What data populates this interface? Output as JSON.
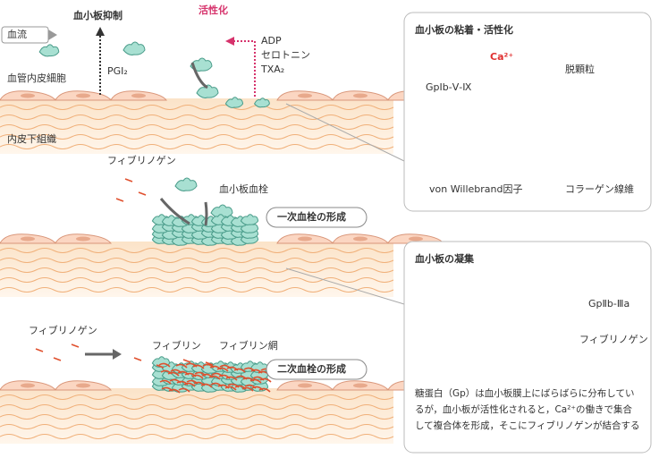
{
  "flow": {
    "label": "血流"
  },
  "top": {
    "inhibition": "血小板抑制",
    "pgi2": "PGI₂",
    "activation": "活性化",
    "mediators": [
      "ADP",
      "セロトニン",
      "TXA₂"
    ],
    "endothelium": "血管内皮細胞",
    "subendothelium": "内皮下組織"
  },
  "middle": {
    "fibrinogen": "フィブリノゲン",
    "thrombus": "血小板血栓",
    "stage": "一次血栓の形成"
  },
  "bottom": {
    "fibrinogen": "フィブリノゲン",
    "fibrin": "フィブリン",
    "fibrin_net": "フィブリン網",
    "stage": "二次血栓の形成"
  },
  "panel1": {
    "title": "血小板の粘着・活性化",
    "ca": "Ca²⁺",
    "degranulation": "脱顆粒",
    "receptor": "GpⅠb-Ⅴ-Ⅸ",
    "vwf": "von Willebrand因子",
    "collagen": "コラーゲン線維"
  },
  "panel2": {
    "title": "血小板の凝集",
    "receptor": "GpⅡb-Ⅲa",
    "fibrinogen": "フィブリノゲン",
    "text": [
      "糖蛋白（Gp）は血小板膜上にばらばらに分布してい",
      "るが，血小板が活性化されると，Ca²⁺の働きで集合",
      "して複合体を形成，そこにフィブリノゲンが結合する"
    ]
  }
}
